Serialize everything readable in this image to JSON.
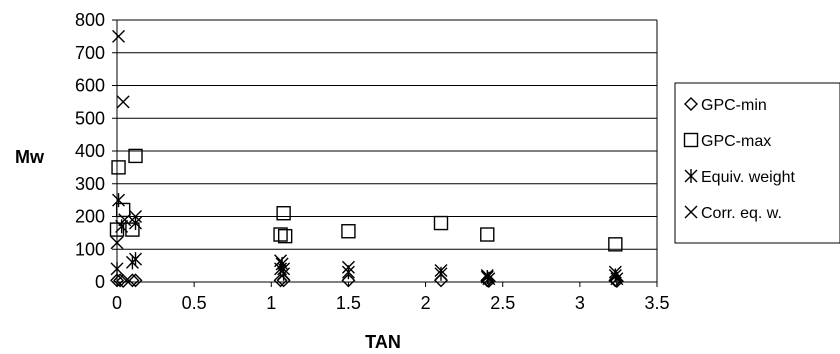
{
  "chart_data": {
    "type": "scatter",
    "xlabel": "TAN",
    "ylabel": "Mw",
    "xlim": [
      0,
      3.5
    ],
    "ylim": [
      0,
      800
    ],
    "x_ticks": [
      "0",
      "0.5",
      "1",
      "1.5",
      "2",
      "2.5",
      "3",
      "3.5"
    ],
    "y_ticks": [
      "0",
      "100",
      "200",
      "300",
      "400",
      "500",
      "600",
      "700",
      "800"
    ],
    "grid": "horizontal",
    "legend_position": "right",
    "series": [
      {
        "name": "GPC-min",
        "marker": "diamond",
        "points": [
          [
            0.0,
            5
          ],
          [
            0.02,
            5
          ],
          [
            0.04,
            3
          ],
          [
            0.1,
            5
          ],
          [
            0.12,
            5
          ],
          [
            1.06,
            5
          ],
          [
            1.08,
            5
          ],
          [
            1.5,
            5
          ],
          [
            2.1,
            5
          ],
          [
            2.4,
            5
          ],
          [
            2.41,
            3
          ],
          [
            3.23,
            5
          ],
          [
            3.24,
            3
          ]
        ]
      },
      {
        "name": "GPC-max",
        "marker": "square",
        "points": [
          [
            0.0,
            160
          ],
          [
            0.01,
            350
          ],
          [
            0.04,
            220
          ],
          [
            0.1,
            160
          ],
          [
            0.12,
            385
          ],
          [
            1.06,
            145
          ],
          [
            1.08,
            210
          ],
          [
            1.09,
            140
          ],
          [
            1.5,
            155
          ],
          [
            2.1,
            180
          ],
          [
            2.4,
            145
          ],
          [
            3.23,
            115
          ]
        ]
      },
      {
        "name": "Equiv. weight",
        "marker": "asterisk",
        "points": [
          [
            0.0,
            40
          ],
          [
            0.01,
            250
          ],
          [
            0.03,
            170
          ],
          [
            0.1,
            60
          ],
          [
            0.12,
            70
          ],
          [
            0.12,
            180
          ],
          [
            1.06,
            40
          ],
          [
            1.07,
            55
          ],
          [
            1.08,
            25
          ],
          [
            1.5,
            30
          ],
          [
            2.1,
            25
          ],
          [
            2.4,
            15
          ],
          [
            2.41,
            10
          ],
          [
            3.23,
            20
          ],
          [
            3.24,
            10
          ]
        ]
      },
      {
        "name": "Corr. eq. w.",
        "marker": "x",
        "points": [
          [
            0.0,
            120
          ],
          [
            0.01,
            750
          ],
          [
            0.04,
            550
          ],
          [
            0.05,
            190
          ],
          [
            0.12,
            200
          ],
          [
            1.06,
            65
          ],
          [
            1.08,
            40
          ],
          [
            1.5,
            45
          ],
          [
            2.1,
            35
          ],
          [
            2.4,
            20
          ],
          [
            3.23,
            30
          ]
        ]
      }
    ]
  }
}
